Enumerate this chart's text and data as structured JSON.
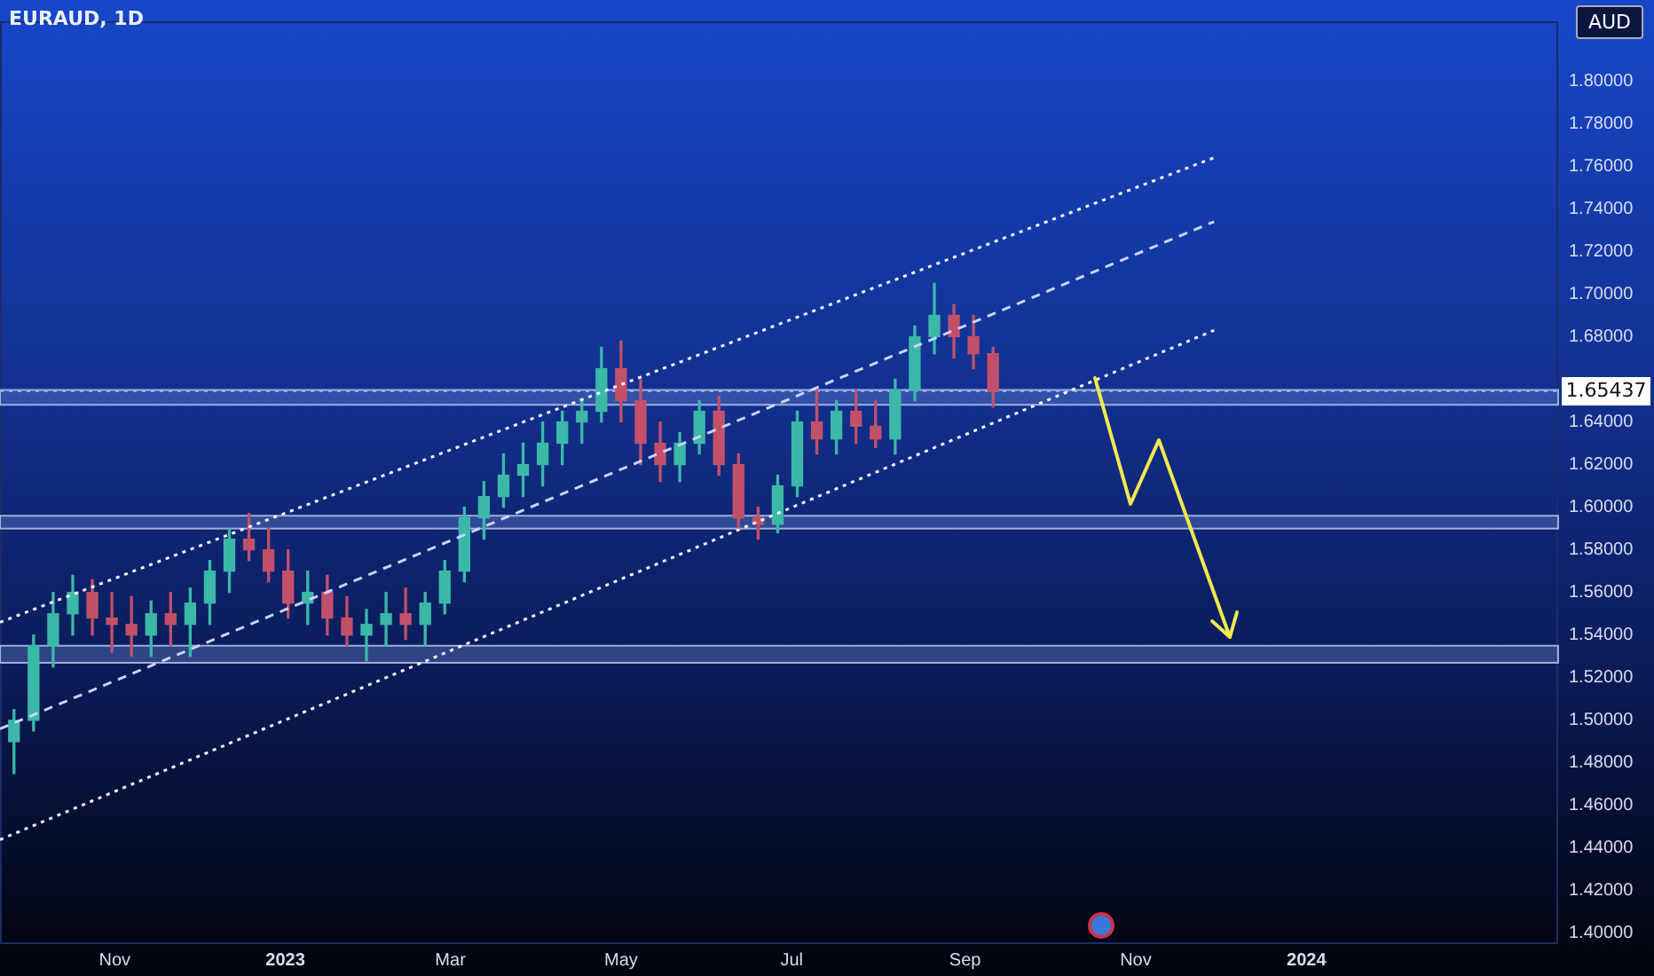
{
  "chart_data": {
    "type": "candlestick",
    "title": "EURAUD, 1D",
    "annotations": [
      "AUD"
    ],
    "x": [
      "2022-09-26",
      "2022-10-03",
      "2022-10-10",
      "2022-10-17",
      "2022-10-24",
      "2022-10-31",
      "2022-11-07",
      "2022-11-14",
      "2022-11-21",
      "2022-11-28",
      "2022-12-05",
      "2022-12-12",
      "2022-12-19",
      "2022-12-26",
      "2023-01-02",
      "2023-01-09",
      "2023-01-16",
      "2023-01-23",
      "2023-01-30",
      "2023-02-06",
      "2023-02-13",
      "2023-02-20",
      "2023-02-27",
      "2023-03-06",
      "2023-03-13",
      "2023-03-20",
      "2023-03-27",
      "2023-04-03",
      "2023-04-10",
      "2023-04-17",
      "2023-04-24",
      "2023-05-01",
      "2023-05-08",
      "2023-05-15",
      "2023-05-22",
      "2023-05-29",
      "2023-06-05",
      "2023-06-12",
      "2023-06-19",
      "2023-06-26",
      "2023-07-03",
      "2023-07-10",
      "2023-07-17",
      "2023-07-24",
      "2023-07-31",
      "2023-08-07",
      "2023-08-14",
      "2023-08-21",
      "2023-08-28",
      "2023-09-04",
      "2023-09-11"
    ],
    "ohlc": [
      [
        1.49,
        1.505,
        1.475,
        1.5
      ],
      [
        1.5,
        1.54,
        1.495,
        1.535
      ],
      [
        1.535,
        1.56,
        1.525,
        1.55
      ],
      [
        1.55,
        1.568,
        1.54,
        1.56
      ],
      [
        1.56,
        1.566,
        1.54,
        1.548
      ],
      [
        1.548,
        1.56,
        1.532,
        1.545
      ],
      [
        1.545,
        1.558,
        1.53,
        1.54
      ],
      [
        1.54,
        1.556,
        1.53,
        1.55
      ],
      [
        1.55,
        1.56,
        1.535,
        1.545
      ],
      [
        1.545,
        1.562,
        1.53,
        1.555
      ],
      [
        1.555,
        1.575,
        1.545,
        1.57
      ],
      [
        1.57,
        1.59,
        1.56,
        1.585
      ],
      [
        1.585,
        1.597,
        1.575,
        1.58
      ],
      [
        1.58,
        1.59,
        1.565,
        1.57
      ],
      [
        1.57,
        1.58,
        1.548,
        1.555
      ],
      [
        1.555,
        1.57,
        1.545,
        1.56
      ],
      [
        1.56,
        1.568,
        1.54,
        1.548
      ],
      [
        1.548,
        1.558,
        1.535,
        1.54
      ],
      [
        1.54,
        1.552,
        1.528,
        1.545
      ],
      [
        1.545,
        1.56,
        1.535,
        1.55
      ],
      [
        1.55,
        1.562,
        1.538,
        1.545
      ],
      [
        1.545,
        1.56,
        1.535,
        1.555
      ],
      [
        1.555,
        1.575,
        1.55,
        1.57
      ],
      [
        1.57,
        1.6,
        1.565,
        1.595
      ],
      [
        1.595,
        1.612,
        1.585,
        1.605
      ],
      [
        1.605,
        1.625,
        1.6,
        1.615
      ],
      [
        1.615,
        1.63,
        1.605,
        1.62
      ],
      [
        1.62,
        1.64,
        1.61,
        1.63
      ],
      [
        1.63,
        1.645,
        1.62,
        1.64
      ],
      [
        1.64,
        1.65,
        1.63,
        1.645
      ],
      [
        1.645,
        1.675,
        1.64,
        1.665
      ],
      [
        1.665,
        1.678,
        1.64,
        1.65
      ],
      [
        1.65,
        1.66,
        1.62,
        1.63
      ],
      [
        1.63,
        1.64,
        1.612,
        1.62
      ],
      [
        1.62,
        1.635,
        1.612,
        1.63
      ],
      [
        1.63,
        1.65,
        1.625,
        1.645
      ],
      [
        1.645,
        1.652,
        1.615,
        1.62
      ],
      [
        1.62,
        1.625,
        1.59,
        1.595
      ],
      [
        1.595,
        1.6,
        1.585,
        1.592
      ],
      [
        1.592,
        1.615,
        1.588,
        1.61
      ],
      [
        1.61,
        1.645,
        1.605,
        1.64
      ],
      [
        1.64,
        1.655,
        1.625,
        1.632
      ],
      [
        1.632,
        1.65,
        1.625,
        1.645
      ],
      [
        1.645,
        1.655,
        1.63,
        1.638
      ],
      [
        1.638,
        1.65,
        1.628,
        1.632
      ],
      [
        1.632,
        1.66,
        1.625,
        1.655
      ],
      [
        1.655,
        1.685,
        1.65,
        1.68
      ],
      [
        1.68,
        1.705,
        1.672,
        1.69
      ],
      [
        1.69,
        1.695,
        1.67,
        1.68
      ],
      [
        1.68,
        1.69,
        1.665,
        1.672
      ],
      [
        1.672,
        1.675,
        1.647,
        1.65437
      ]
    ],
    "colors": [
      "#3bb8a8",
      "#3bb8a8",
      "#3bb8a8",
      "#3bb8a8",
      "#c2506a",
      "#c2506a",
      "#c2506a",
      "#3bb8a8",
      "#c2506a",
      "#3bb8a8",
      "#3bb8a8",
      "#3bb8a8",
      "#c2506a",
      "#c2506a",
      "#c2506a",
      "#3bb8a8",
      "#c2506a",
      "#c2506a",
      "#3bb8a8",
      "#3bb8a8",
      "#c2506a",
      "#3bb8a8",
      "#3bb8a8",
      "#3bb8a8",
      "#3bb8a8",
      "#3bb8a8",
      "#3bb8a8",
      "#3bb8a8",
      "#3bb8a8",
      "#3bb8a8",
      "#3bb8a8",
      "#c2506a",
      "#c2506a",
      "#c2506a",
      "#3bb8a8",
      "#3bb8a8",
      "#c2506a",
      "#c2506a",
      "#c2506a",
      "#3bb8a8",
      "#3bb8a8",
      "#c2506a",
      "#3bb8a8",
      "#c2506a",
      "#c2506a",
      "#3bb8a8",
      "#3bb8a8",
      "#3bb8a8",
      "#c2506a",
      "#c2506a",
      "#c2506a"
    ],
    "series": [
      {
        "type": "line",
        "color": "#ffffff",
        "line_style": "dotted",
        "x": [
          "2022-09-21",
          "2023-11-29"
        ],
        "values": [
          1.546,
          1.764
        ]
      },
      {
        "type": "line",
        "color": "#c8d4ff",
        "line_style": "dashed",
        "x": [
          "2022-09-21",
          "2023-11-29"
        ],
        "values": [
          1.496,
          1.734
        ]
      },
      {
        "type": "line",
        "color": "#ffffff",
        "line_style": "dotted",
        "x": [
          "2022-09-21",
          "2023-11-29"
        ],
        "values": [
          1.444,
          1.683
        ]
      }
    ],
    "bands": [
      {
        "axis": "y",
        "from": 1.648,
        "to": 1.655,
        "color": "#6f8fd6"
      },
      {
        "axis": "y",
        "from": 1.59,
        "to": 1.596,
        "color": "#6f8fd6"
      },
      {
        "axis": "y",
        "from": 1.527,
        "to": 1.535,
        "color": "#6f8fd6"
      }
    ],
    "ref_lines": [
      {
        "axis": "y",
        "value": 1.65437,
        "label": "1.65437",
        "color": "#8ea6ff",
        "line_style": "dotted"
      }
    ],
    "xlim": [
      "2022-09-21",
      "2024-03-31"
    ],
    "xticks": [
      {
        "value": "2022-11-01",
        "label": "Nov"
      },
      {
        "value": "2023-01-01",
        "label": "2023"
      },
      {
        "value": "2023-03-01",
        "label": "Mar"
      },
      {
        "value": "2023-05-01",
        "label": "May"
      },
      {
        "value": "2023-07-01",
        "label": "Jul"
      },
      {
        "value": "2023-09-01",
        "label": "Sep"
      },
      {
        "value": "2023-11-01",
        "label": "Nov"
      },
      {
        "value": "2024-01-01",
        "label": "2024"
      }
    ],
    "ylim": [
      1.395,
      1.828
    ],
    "yticks": [
      {
        "value": 1.4,
        "label": "1.40000"
      },
      {
        "value": 1.42,
        "label": "1.42000"
      },
      {
        "value": 1.44,
        "label": "1.44000"
      },
      {
        "value": 1.46,
        "label": "1.46000"
      },
      {
        "value": 1.48,
        "label": "1.48000"
      },
      {
        "value": 1.5,
        "label": "1.50000"
      },
      {
        "value": 1.52,
        "label": "1.52000"
      },
      {
        "value": 1.54,
        "label": "1.54000"
      },
      {
        "value": 1.56,
        "label": "1.56000"
      },
      {
        "value": 1.58,
        "label": "1.58000"
      },
      {
        "value": 1.6,
        "label": "1.60000"
      },
      {
        "value": 1.62,
        "label": "1.62000"
      },
      {
        "value": 1.64,
        "label": "1.64000"
      },
      {
        "value": 1.68,
        "label": "1.68000"
      },
      {
        "value": 1.7,
        "label": "1.70000"
      },
      {
        "value": 1.72,
        "label": "1.72000"
      },
      {
        "value": 1.74,
        "label": "1.74000"
      },
      {
        "value": 1.76,
        "label": "1.76000"
      },
      {
        "value": 1.78,
        "label": "1.78000"
      },
      {
        "value": 1.8,
        "label": "1.80000"
      }
    ],
    "grid": false,
    "legend": false,
    "marker": "none"
  }
}
